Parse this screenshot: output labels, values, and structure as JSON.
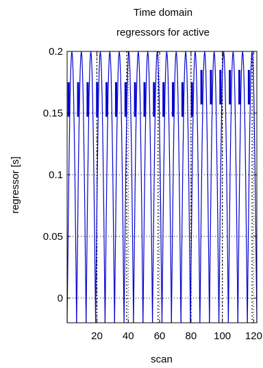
{
  "chart_data": {
    "type": "line",
    "title_lines": [
      "Time domain",
      "regressors for active"
    ],
    "xlabel": "scan",
    "ylabel": "regressor [s]",
    "xlim": [
      1,
      122
    ],
    "ylim": [
      -0.02,
      0.2
    ],
    "xticks": [
      20,
      40,
      60,
      80,
      100,
      120
    ],
    "yticks": [
      0,
      0.05,
      0.1,
      0.15,
      0.2
    ],
    "ytick_labels": [
      "0",
      "0.05",
      "0.1",
      "0.15",
      "0.2"
    ],
    "grid": true,
    "series": [
      {
        "color": "#0000cc",
        "waveform": {
          "cycles": 20,
          "period_scans": 6,
          "peak": 0.2,
          "trough": -0.02,
          "plateau_values": [
            0.175,
            0.175,
            0.175,
            0.175,
            0.175,
            0.175,
            0.175,
            0.175,
            0.175,
            0.175,
            0.175,
            0.175,
            0.175,
            0.175,
            0.185,
            0.185,
            0.185,
            0.185,
            0.185,
            0.185
          ]
        }
      },
      {
        "color": "#000000",
        "style": "dotted",
        "vertical_markers_x": [
          20,
          39,
          59,
          80,
          100,
          119
        ]
      }
    ]
  }
}
